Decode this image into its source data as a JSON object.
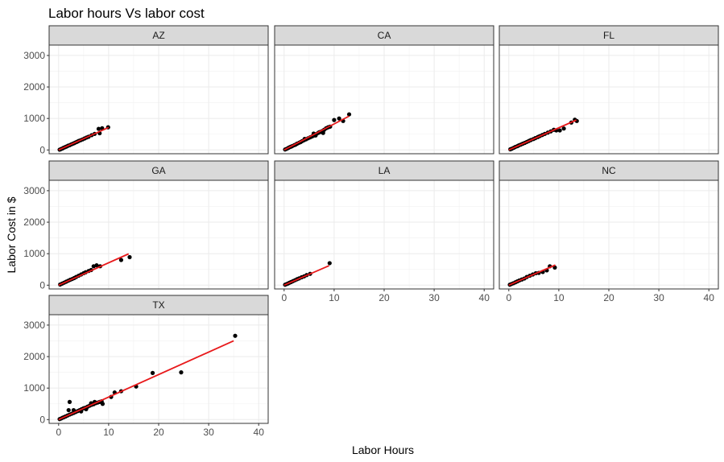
{
  "chart_data": {
    "type": "scatter",
    "title": "Labor hours Vs labor cost",
    "xlabel": "Labor Hours",
    "ylabel": "Labor Cost in $",
    "xlim": [
      0,
      40
    ],
    "ylim": [
      0,
      3000
    ],
    "x_ticks": [
      "0",
      "10",
      "20",
      "30",
      "40"
    ],
    "y_ticks": [
      "0",
      "1000",
      "2000",
      "3000"
    ],
    "grid": true,
    "point_color": "#000000",
    "fit_line_color": "#e8191b",
    "facets": [
      {
        "label": "AZ",
        "points": [
          [
            0.2,
            10
          ],
          [
            0.5,
            30
          ],
          [
            0.8,
            50
          ],
          [
            1.0,
            70
          ],
          [
            1.3,
            90
          ],
          [
            1.6,
            110
          ],
          [
            1.9,
            135
          ],
          [
            2.2,
            150
          ],
          [
            2.5,
            175
          ],
          [
            2.8,
            195
          ],
          [
            3.1,
            215
          ],
          [
            3.4,
            240
          ],
          [
            3.7,
            260
          ],
          [
            4.0,
            285
          ],
          [
            4.4,
            310
          ],
          [
            4.8,
            335
          ],
          [
            5.2,
            365
          ],
          [
            5.6,
            395
          ],
          [
            6.0,
            420
          ],
          [
            6.6,
            470
          ],
          [
            7.2,
            510
          ],
          [
            8.0,
            670
          ],
          [
            8.2,
            530
          ],
          [
            8.7,
            690
          ],
          [
            9.9,
            720
          ]
        ],
        "fit": [
          [
            0,
            0
          ],
          [
            10,
            715
          ]
        ]
      },
      {
        "label": "CA",
        "points": [
          [
            0.2,
            15
          ],
          [
            0.5,
            35
          ],
          [
            0.8,
            60
          ],
          [
            1.0,
            80
          ],
          [
            1.3,
            100
          ],
          [
            1.6,
            120
          ],
          [
            2.0,
            150
          ],
          [
            2.3,
            170
          ],
          [
            2.6,
            200
          ],
          [
            3.0,
            230
          ],
          [
            3.3,
            250
          ],
          [
            3.6,
            280
          ],
          [
            4.0,
            310
          ],
          [
            4.4,
            340
          ],
          [
            4.8,
            370
          ],
          [
            5.2,
            400
          ],
          [
            5.6,
            430
          ],
          [
            6.0,
            460
          ],
          [
            6.4,
            500
          ],
          [
            6.8,
            540
          ],
          [
            7.2,
            570
          ],
          [
            7.6,
            600
          ],
          [
            8.0,
            640
          ],
          [
            8.4,
            690
          ],
          [
            8.8,
            720
          ],
          [
            4.1,
            350
          ],
          [
            5.9,
            520
          ],
          [
            6.3,
            460
          ],
          [
            7.0,
            560
          ],
          [
            7.8,
            540
          ],
          [
            9.2,
            740
          ],
          [
            10.0,
            950
          ],
          [
            11.0,
            1000
          ],
          [
            11.8,
            920
          ],
          [
            13.0,
            1130
          ]
        ],
        "fit": [
          [
            0,
            0
          ],
          [
            13,
            1075
          ]
        ]
      },
      {
        "label": "FL",
        "points": [
          [
            0.3,
            20
          ],
          [
            0.6,
            40
          ],
          [
            1.0,
            70
          ],
          [
            1.3,
            95
          ],
          [
            1.7,
            120
          ],
          [
            2.0,
            145
          ],
          [
            2.4,
            170
          ],
          [
            2.8,
            200
          ],
          [
            3.2,
            225
          ],
          [
            3.6,
            255
          ],
          [
            4.0,
            285
          ],
          [
            4.4,
            315
          ],
          [
            4.9,
            345
          ],
          [
            5.3,
            375
          ],
          [
            5.8,
            410
          ],
          [
            6.2,
            440
          ],
          [
            6.7,
            475
          ],
          [
            7.2,
            510
          ],
          [
            7.8,
            550
          ],
          [
            8.4,
            590
          ],
          [
            9.0,
            640
          ],
          [
            9.5,
            620
          ],
          [
            10.2,
            620
          ],
          [
            11.0,
            680
          ],
          [
            12.5,
            870
          ],
          [
            13.2,
            960
          ],
          [
            13.6,
            920
          ]
        ],
        "fit": [
          [
            0,
            0
          ],
          [
            13.5,
            950
          ]
        ]
      },
      {
        "label": "GA",
        "points": [
          [
            0.3,
            20
          ],
          [
            0.7,
            50
          ],
          [
            1.1,
            80
          ],
          [
            1.5,
            110
          ],
          [
            1.9,
            140
          ],
          [
            2.3,
            170
          ],
          [
            2.7,
            195
          ],
          [
            3.1,
            225
          ],
          [
            3.5,
            260
          ],
          [
            4.0,
            300
          ],
          [
            4.5,
            340
          ],
          [
            5.0,
            380
          ],
          [
            5.4,
            410
          ],
          [
            6.0,
            450
          ],
          [
            6.5,
            480
          ],
          [
            7.0,
            600
          ],
          [
            7.6,
            630
          ],
          [
            8.3,
            600
          ],
          [
            12.5,
            800
          ],
          [
            14.2,
            890
          ]
        ],
        "fit": [
          [
            0,
            0
          ],
          [
            14,
            995
          ]
        ]
      },
      {
        "label": "LA",
        "points": [
          [
            0.2,
            15
          ],
          [
            0.5,
            35
          ],
          [
            0.8,
            55
          ],
          [
            1.1,
            80
          ],
          [
            1.4,
            100
          ],
          [
            1.8,
            130
          ],
          [
            2.2,
            160
          ],
          [
            2.6,
            190
          ],
          [
            3.0,
            215
          ],
          [
            3.5,
            250
          ],
          [
            4.0,
            280
          ],
          [
            4.5,
            320
          ],
          [
            5.2,
            360
          ],
          [
            9.1,
            700
          ]
        ],
        "fit": [
          [
            0,
            0
          ],
          [
            9,
            620
          ]
        ]
      },
      {
        "label": "NC",
        "points": [
          [
            0.2,
            15
          ],
          [
            0.5,
            35
          ],
          [
            0.9,
            60
          ],
          [
            1.3,
            90
          ],
          [
            1.7,
            120
          ],
          [
            2.1,
            150
          ],
          [
            2.6,
            180
          ],
          [
            3.1,
            210
          ],
          [
            3.6,
            260
          ],
          [
            4.2,
            300
          ],
          [
            4.8,
            340
          ],
          [
            5.4,
            380
          ],
          [
            6.0,
            390
          ],
          [
            6.8,
            420
          ],
          [
            7.6,
            470
          ],
          [
            8.2,
            600
          ],
          [
            9.2,
            560
          ]
        ],
        "fit": [
          [
            0,
            0
          ],
          [
            9.3,
            640
          ]
        ]
      },
      {
        "label": "TX",
        "points": [
          [
            0.2,
            15
          ],
          [
            0.5,
            35
          ],
          [
            0.8,
            60
          ],
          [
            1.1,
            80
          ],
          [
            1.4,
            100
          ],
          [
            1.8,
            130
          ],
          [
            2.2,
            160
          ],
          [
            2.6,
            185
          ],
          [
            3.0,
            210
          ],
          [
            3.4,
            240
          ],
          [
            3.8,
            270
          ],
          [
            4.2,
            300
          ],
          [
            4.6,
            330
          ],
          [
            5.0,
            360
          ],
          [
            5.4,
            380
          ],
          [
            5.8,
            410
          ],
          [
            6.2,
            440
          ],
          [
            6.6,
            470
          ],
          [
            7.0,
            490
          ],
          [
            7.4,
            520
          ],
          [
            7.8,
            540
          ],
          [
            8.2,
            560
          ],
          [
            8.6,
            580
          ],
          [
            2.2,
            560
          ],
          [
            2.0,
            300
          ],
          [
            3.0,
            300
          ],
          [
            4.5,
            260
          ],
          [
            5.5,
            330
          ],
          [
            6.5,
            520
          ],
          [
            7.2,
            560
          ],
          [
            8.8,
            500
          ],
          [
            10.5,
            720
          ],
          [
            11.2,
            860
          ],
          [
            12.5,
            900
          ],
          [
            15.5,
            1050
          ],
          [
            18.8,
            1480
          ],
          [
            24.5,
            1500
          ],
          [
            35.3,
            2660
          ]
        ],
        "fit": [
          [
            0,
            0
          ],
          [
            35,
            2500
          ]
        ]
      }
    ]
  }
}
